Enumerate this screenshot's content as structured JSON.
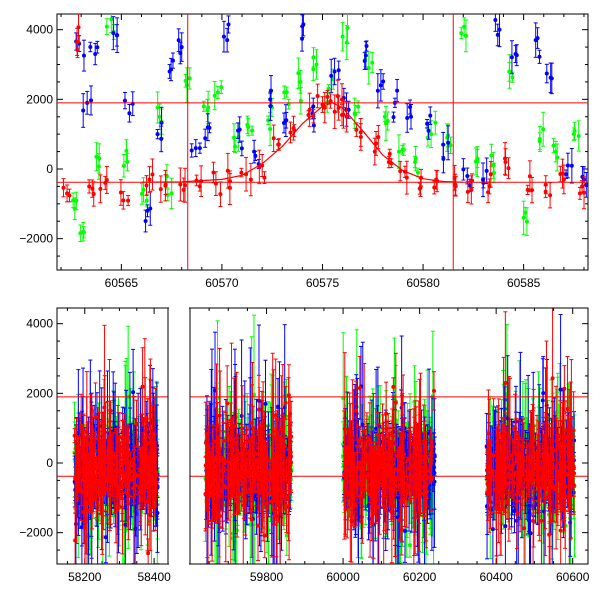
{
  "colors": {
    "red": "#ff0000",
    "green": "#00ff00",
    "blue": "#0000ff",
    "frame": "#000000",
    "background": "#ffffff"
  },
  "chart_data": [
    {
      "type": "scatter",
      "title": "",
      "xlabel": "",
      "ylabel": "",
      "xlim": [
        60561.8,
        60588.2
      ],
      "ylim": [
        -2900,
        4450
      ],
      "xticks": [
        60565,
        60570,
        60575,
        60580,
        60585
      ],
      "xtick_labels": [
        "60565",
        "60570",
        "60575",
        "60580",
        "60585"
      ],
      "yticks": [
        -2000,
        0,
        2000,
        4000
      ],
      "ytick_labels": [
        "−2000",
        "0",
        "2000",
        "4000"
      ],
      "hlines": [
        1900,
        -380
      ],
      "vlines": [
        60568.3,
        60581.5
      ],
      "model_curve": {
        "color": "red",
        "x": [
          60566,
          60568,
          60570,
          60571,
          60572,
          60573,
          60574,
          60575,
          60575.5,
          60576,
          60577,
          60578,
          60579,
          60580,
          60581,
          60582
        ],
        "y": [
          -380,
          -370,
          -300,
          -180,
          150,
          650,
          1300,
          1800,
          1900,
          1750,
          1100,
          400,
          -50,
          -280,
          -360,
          -380
        ]
      },
      "series": [
        {
          "color": "red",
          "x": [
            60562.3,
            60562.8,
            60563.4,
            60564.2,
            60565.1,
            60566.4,
            60567.2,
            60568.1,
            60568.9,
            60569.7,
            60570.4,
            60571.2,
            60572.0,
            60572.8,
            60573.6,
            60574.3,
            60575.0,
            60575.4,
            60575.8,
            60576.2,
            60576.9,
            60577.6,
            60578.3,
            60579.1,
            60579.9,
            60580.7,
            60581.6,
            60582.4,
            60583.3,
            60584.1,
            60585.2,
            60586.1,
            60587.0,
            60587.8
          ],
          "y": [
            -700,
            3650,
            -500,
            -400,
            -900,
            -300,
            -450,
            -600,
            -500,
            -420,
            -350,
            -150,
            100,
            700,
            1100,
            1550,
            1850,
            1950,
            1750,
            1500,
            1050,
            500,
            200,
            -80,
            -250,
            -350,
            -450,
            -600,
            -500,
            200,
            -600,
            -450,
            -300,
            -700
          ]
        },
        {
          "color": "green",
          "x": [
            60562.6,
            60563.1,
            60563.9,
            60564.5,
            60565.3,
            60566.1,
            60566.9,
            60567.5,
            60568.4,
            60569.1,
            60569.8,
            60570.6,
            60571.5,
            60572.3,
            60573.1,
            60573.9,
            60574.7,
            60575.3,
            60576.0,
            60576.6,
            60577.3,
            60578.1,
            60578.8,
            60579.6,
            60580.4,
            60581.2,
            60581.9,
            60582.7,
            60583.5,
            60584.3,
            60585.0,
            60585.8,
            60586.6,
            60587.5
          ],
          "y": [
            -900,
            -1800,
            300,
            4300,
            200,
            -600,
            1500,
            -700,
            2600,
            1800,
            2200,
            900,
            1100,
            1400,
            2200,
            2500,
            3000,
            2300,
            3800,
            1600,
            2900,
            1500,
            500,
            200,
            1000,
            900,
            3900,
            300,
            100,
            2800,
            -1400,
            800,
            500,
            1000
          ]
        },
        {
          "color": "blue",
          "x": [
            60562.9,
            60563.3,
            60563.7,
            60564.6,
            60565.4,
            60566.3,
            60566.8,
            60567.4,
            60568.0,
            60568.7,
            60569.3,
            60570.1,
            60570.8,
            60571.6,
            60572.4,
            60573.2,
            60574.0,
            60574.5,
            60575.6,
            60576.3,
            60577.1,
            60577.9,
            60578.6,
            60579.4,
            60580.2,
            60581.0,
            60582.2,
            60583.0,
            60583.8,
            60584.6,
            60585.6,
            60586.4,
            60587.2,
            60588.0
          ],
          "y": [
            3600,
            1900,
            3300,
            3900,
            1600,
            -1200,
            1000,
            2800,
            3500,
            600,
            1200,
            3800,
            1100,
            500,
            2000,
            1400,
            4100,
            1600,
            2800,
            1700,
            3100,
            2400,
            1900,
            1500,
            1300,
            700,
            -200,
            -400,
            4000,
            3300,
            3700,
            2600,
            100,
            -300
          ]
        }
      ],
      "grid": false,
      "legend": "none"
    },
    {
      "type": "scatter",
      "title": "",
      "xlabel": "",
      "ylabel": "",
      "xlim": [
        58120,
        60640
      ],
      "ylim": [
        -2900,
        4450
      ],
      "xticks": [
        58200,
        58400,
        59800,
        60000,
        60200,
        60400,
        60600
      ],
      "xtick_labels": [
        "58200",
        "58400",
        "59800",
        "60000",
        "60200",
        "60400",
        "60600"
      ],
      "yticks": [
        -2000,
        0,
        2000,
        4000
      ],
      "ytick_labels": [
        "−2000",
        "0",
        "2000",
        "4000"
      ],
      "hlines": [
        1900,
        -380
      ],
      "axis_break": {
        "from": 58440,
        "to": 59600
      },
      "observing_seasons": [
        [
          58170,
          58410
        ],
        [
          59640,
          59865
        ],
        [
          60000,
          60240
        ],
        [
          60375,
          60605
        ]
      ],
      "series_colors": [
        "green",
        "blue",
        "red"
      ],
      "grid": false,
      "legend": "none"
    }
  ]
}
